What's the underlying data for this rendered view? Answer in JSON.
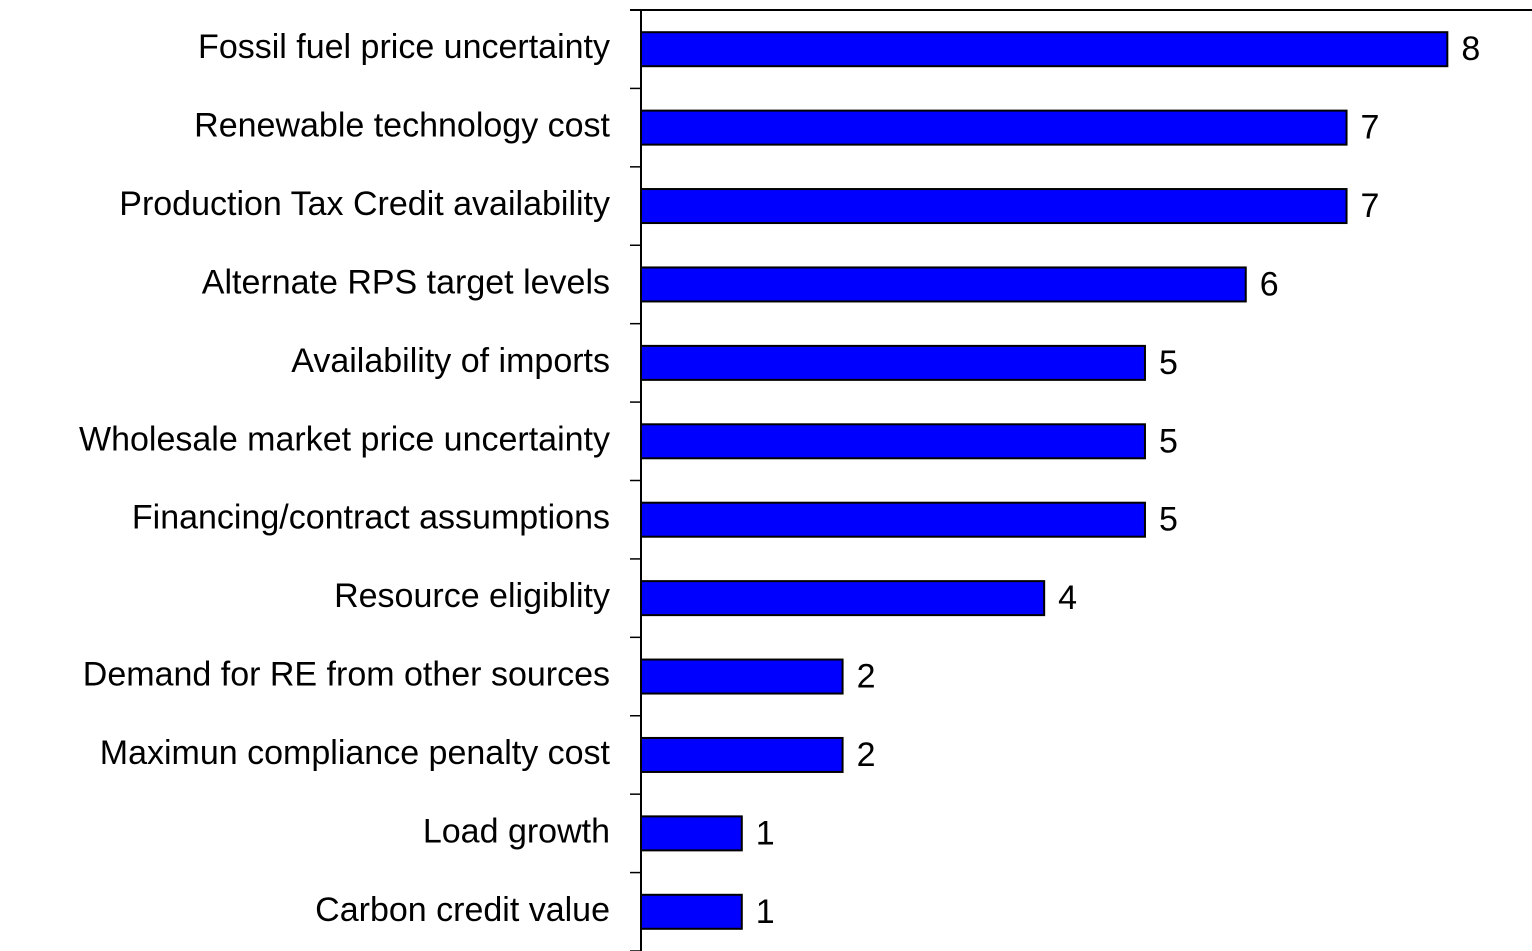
{
  "chart_data": {
    "type": "bar",
    "orientation": "horizontal",
    "categories": [
      "Fossil fuel price uncertainty",
      "Renewable technology cost",
      "Production Tax Credit availability",
      "Alternate RPS target levels",
      "Availability of imports",
      "Wholesale market price uncertainty",
      "Financing/contract assumptions",
      "Resource eligiblity",
      "Demand for RE from other sources",
      "Maximun compliance penalty cost",
      "Load growth",
      "Carbon credit value"
    ],
    "values": [
      8,
      7,
      7,
      6,
      5,
      5,
      5,
      4,
      2,
      2,
      1,
      1
    ],
    "color": "#0000ff",
    "xlim": [
      0,
      8.84
    ]
  }
}
